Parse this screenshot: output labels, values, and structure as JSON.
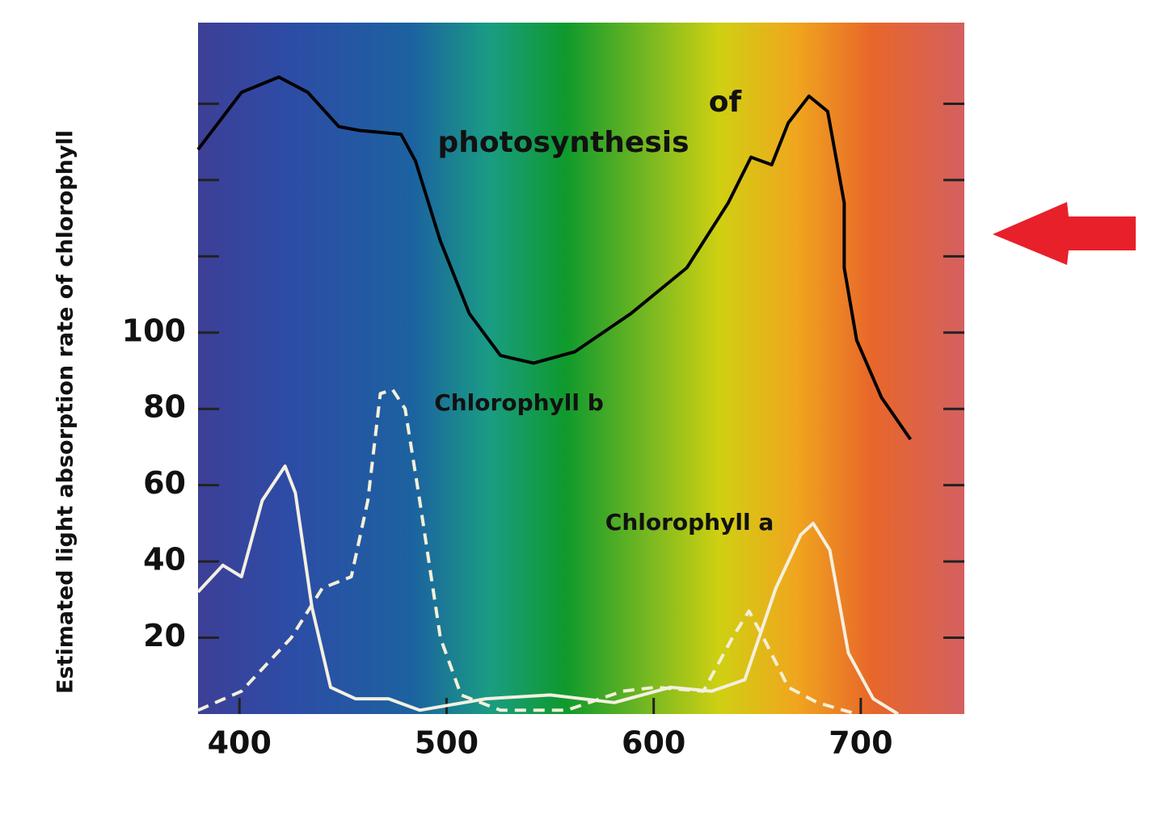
{
  "chart_data": {
    "type": "line",
    "y_label": "Estimated light absorption rate of chlorophyll",
    "xlim": [
      380,
      750
    ],
    "xticks": [
      400,
      500,
      600,
      700
    ],
    "ylim": [
      0,
      180
    ],
    "yticks": [
      20,
      40,
      60,
      80,
      100
    ],
    "y_minor_ticks": [
      120,
      140,
      160
    ],
    "annotations": [
      "of",
      "photosynthesis"
    ],
    "series": [
      {
        "color": "#000000",
        "line_style": "solid",
        "x": [
          380,
          401,
          419,
          433,
          448,
          458,
          478,
          485,
          497,
          511,
          526,
          542,
          562,
          589,
          616,
          636,
          647,
          657,
          665,
          675,
          684,
          692,
          692,
          698,
          710,
          724
        ],
        "values": [
          148,
          163,
          167,
          163,
          154,
          153,
          152,
          145,
          124,
          105,
          94,
          92,
          95,
          105,
          117,
          134,
          146,
          144,
          155,
          162,
          158,
          134,
          117,
          98,
          83,
          72
        ]
      },
      {
        "name": "Chlorophyll b",
        "color": "#f4f0d8",
        "line_style": "dashed",
        "x": [
          380,
          401,
          425,
          440,
          454,
          462,
          468,
          474,
          480,
          487,
          497,
          507,
          526,
          558,
          585,
          601,
          624,
          638,
          646,
          653,
          665,
          679,
          698
        ],
        "values": [
          1,
          6,
          20,
          33,
          36,
          56,
          84,
          85,
          80,
          56,
          20,
          5,
          1,
          1,
          6,
          7,
          6,
          20,
          27,
          20,
          7,
          3,
          0
        ]
      },
      {
        "name": "Chlorophyll a",
        "color": "#f4f0e0",
        "line_style": "solid",
        "x": [
          380,
          392,
          401,
          411,
          422,
          427,
          435,
          444,
          456,
          472,
          487,
          519,
          550,
          581,
          608,
          628,
          644,
          659,
          671,
          677,
          685,
          694,
          706,
          718
        ],
        "values": [
          32,
          39,
          36,
          56,
          65,
          58,
          28,
          7,
          4,
          4,
          1,
          4,
          5,
          3,
          7,
          6,
          9,
          33,
          47,
          50,
          43,
          16,
          4,
          0
        ]
      }
    ]
  }
}
